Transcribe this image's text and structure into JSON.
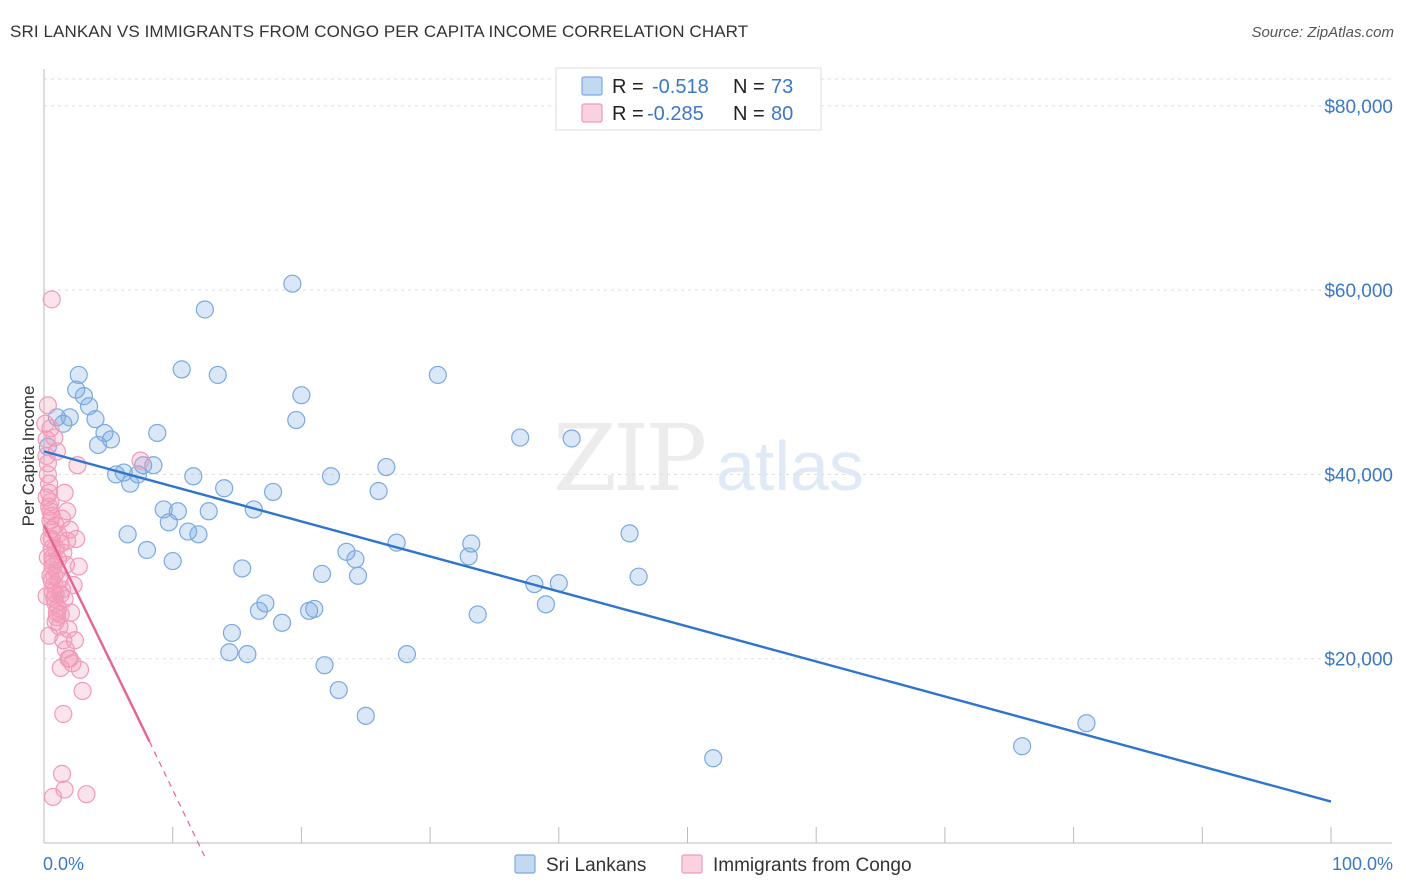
{
  "header": {
    "title": "SRI LANKAN VS IMMIGRANTS FROM CONGO PER CAPITA INCOME CORRELATION CHART",
    "source": "Source: ZipAtlas.com"
  },
  "chart_data": {
    "type": "scatter",
    "title": "SRI LANKAN VS IMMIGRANTS FROM CONGO PER CAPITA INCOME CORRELATION CHART",
    "ylabel": "Per Capita Income",
    "xlabel": "",
    "xlim": [
      0,
      100
    ],
    "ylim": [
      0,
      84000
    ],
    "x_tick_labels": [
      "0.0%",
      "100.0%"
    ],
    "y_ticks": [
      20000,
      40000,
      60000,
      80000
    ],
    "y_tick_labels": [
      "$20,000",
      "$40,000",
      "$60,000",
      "$80,000"
    ],
    "grid": true,
    "watermark": "ZIPatlas",
    "legend_position": "top-center",
    "stats": [
      {
        "r_label": "R =",
        "r": "-0.518",
        "n_label": "N =",
        "n": "73"
      },
      {
        "r_label": "R =",
        "r": "-0.285",
        "n_label": "N =",
        "n": "80"
      }
    ],
    "series": [
      {
        "name": "Sri Lankans",
        "color": "#7aa9e0",
        "line_color": "#2f74cf",
        "trend": {
          "x0": 0,
          "y0": 42500,
          "x1": 100,
          "y1": 4500
        },
        "points": [
          [
            0.3,
            43000
          ],
          [
            1.0,
            46200
          ],
          [
            1.5,
            45500
          ],
          [
            2.0,
            46200
          ],
          [
            2.5,
            49200
          ],
          [
            2.7,
            50800
          ],
          [
            3.1,
            48500
          ],
          [
            3.5,
            47400
          ],
          [
            4.0,
            46000
          ],
          [
            4.2,
            43200
          ],
          [
            4.7,
            44500
          ],
          [
            5.2,
            43800
          ],
          [
            5.6,
            40000
          ],
          [
            6.2,
            40200
          ],
          [
            6.5,
            33500
          ],
          [
            6.7,
            39000
          ],
          [
            7.3,
            40000
          ],
          [
            7.7,
            41000
          ],
          [
            8.0,
            31800
          ],
          [
            8.5,
            41000
          ],
          [
            8.8,
            44500
          ],
          [
            9.3,
            36200
          ],
          [
            9.7,
            34800
          ],
          [
            10.0,
            30600
          ],
          [
            10.4,
            36000
          ],
          [
            10.7,
            51400
          ],
          [
            11.2,
            33800
          ],
          [
            11.6,
            39800
          ],
          [
            12.0,
            33500
          ],
          [
            12.5,
            57900
          ],
          [
            12.8,
            36000
          ],
          [
            13.5,
            50800
          ],
          [
            14.0,
            38500
          ],
          [
            14.6,
            22800
          ],
          [
            14.4,
            20700
          ],
          [
            15.4,
            29800
          ],
          [
            15.8,
            20500
          ],
          [
            16.3,
            36200
          ],
          [
            16.7,
            25200
          ],
          [
            17.2,
            26000
          ],
          [
            17.8,
            38100
          ],
          [
            18.5,
            23900
          ],
          [
            19.3,
            60700
          ],
          [
            19.6,
            45900
          ],
          [
            20.0,
            48600
          ],
          [
            20.6,
            25200
          ],
          [
            21.0,
            25400
          ],
          [
            21.6,
            29200
          ],
          [
            21.8,
            19300
          ],
          [
            22.3,
            39800
          ],
          [
            22.9,
            16600
          ],
          [
            23.5,
            31600
          ],
          [
            24.2,
            30800
          ],
          [
            24.4,
            29000
          ],
          [
            25.0,
            13800
          ],
          [
            26.0,
            38200
          ],
          [
            26.6,
            40800
          ],
          [
            27.4,
            32600
          ],
          [
            28.2,
            20500
          ],
          [
            30.6,
            50800
          ],
          [
            33.0,
            31100
          ],
          [
            33.2,
            32500
          ],
          [
            33.7,
            24800
          ],
          [
            37.0,
            44000
          ],
          [
            38.1,
            28100
          ],
          [
            39.0,
            25900
          ],
          [
            40.0,
            28200
          ],
          [
            41.0,
            43900
          ],
          [
            45.5,
            33600
          ],
          [
            46.2,
            28900
          ],
          [
            52.0,
            9200
          ],
          [
            81.0,
            13000
          ],
          [
            76.0,
            10500
          ]
        ]
      },
      {
        "name": "Immigrants from Congo",
        "color": "#f19ab8",
        "line_color": "#e8638f",
        "trend": {
          "x0": 0,
          "y0": 34500,
          "x1": 8.2,
          "y1": 11000,
          "dash_x1": 12.5,
          "dash_y1": -1500
        },
        "points": [
          [
            0.1,
            45500
          ],
          [
            0.2,
            43800
          ],
          [
            0.2,
            42000
          ],
          [
            0.3,
            41200
          ],
          [
            0.3,
            40000
          ],
          [
            0.4,
            39000
          ],
          [
            0.4,
            38000
          ],
          [
            0.5,
            37000
          ],
          [
            0.5,
            36000
          ],
          [
            0.5,
            35000
          ],
          [
            0.6,
            34000
          ],
          [
            0.6,
            33000
          ],
          [
            0.6,
            32000
          ],
          [
            0.7,
            31000
          ],
          [
            0.7,
            30000
          ],
          [
            0.8,
            29000
          ],
          [
            0.8,
            28000
          ],
          [
            0.9,
            27000
          ],
          [
            0.9,
            26000
          ],
          [
            1.0,
            25000
          ],
          [
            0.3,
            47500
          ],
          [
            0.5,
            45000
          ],
          [
            0.8,
            44000
          ],
          [
            1.0,
            42500
          ],
          [
            0.2,
            37500
          ],
          [
            0.4,
            36500
          ],
          [
            0.6,
            35500
          ],
          [
            0.9,
            34500
          ],
          [
            1.1,
            33500
          ],
          [
            1.3,
            32500
          ],
          [
            1.5,
            31500
          ],
          [
            0.7,
            30500
          ],
          [
            1.0,
            29500
          ],
          [
            1.2,
            28500
          ],
          [
            1.4,
            27500
          ],
          [
            1.6,
            26500
          ],
          [
            1.0,
            24500
          ],
          [
            1.2,
            23500
          ],
          [
            1.5,
            22000
          ],
          [
            1.7,
            21000
          ],
          [
            1.9,
            20000
          ],
          [
            2.2,
            19500
          ],
          [
            1.3,
            19000
          ],
          [
            0.4,
            33000
          ],
          [
            0.6,
            28500
          ],
          [
            0.8,
            26500
          ],
          [
            1.1,
            25500
          ],
          [
            1.3,
            24800
          ],
          [
            1.6,
            38000
          ],
          [
            1.8,
            36000
          ],
          [
            2.0,
            34000
          ],
          [
            0.3,
            31000
          ],
          [
            0.5,
            29000
          ],
          [
            0.7,
            27200
          ],
          [
            0.9,
            32000
          ],
          [
            1.4,
            35200
          ],
          [
            1.7,
            30200
          ],
          [
            2.1,
            25000
          ],
          [
            2.4,
            22000
          ],
          [
            2.8,
            18800
          ],
          [
            3.0,
            16500
          ],
          [
            1.5,
            14000
          ],
          [
            1.4,
            7500
          ],
          [
            1.6,
            5800
          ],
          [
            0.7,
            5000
          ],
          [
            3.3,
            5300
          ],
          [
            0.6,
            59000
          ],
          [
            2.6,
            41000
          ],
          [
            7.5,
            41500
          ],
          [
            2.0,
            20000
          ],
          [
            1.3,
            27000
          ],
          [
            0.9,
            24000
          ],
          [
            2.3,
            28000
          ],
          [
            2.5,
            33000
          ],
          [
            0.4,
            22500
          ],
          [
            1.8,
            32800
          ],
          [
            1.1,
            30800
          ],
          [
            0.2,
            26800
          ],
          [
            1.9,
            23200
          ],
          [
            2.7,
            30000
          ]
        ]
      }
    ]
  }
}
